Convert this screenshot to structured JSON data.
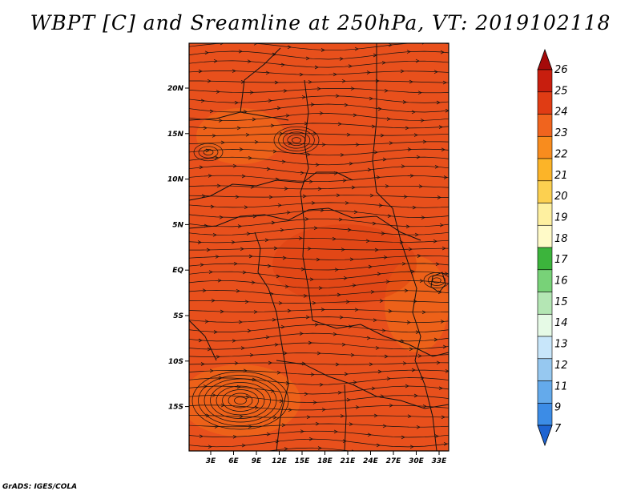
{
  "title": "WBPT [C] and Sreamline at 250hPa, VT: 2019102118",
  "credit": "GrADS: IGES/COLA",
  "map": {
    "lat_labels": [
      "20N",
      "15N",
      "10N",
      "5N",
      "EQ",
      "5S",
      "10S",
      "15S"
    ],
    "lon_labels": [
      "3E",
      "6E",
      "9E",
      "12E",
      "15E",
      "18E",
      "21E",
      "24E",
      "27E",
      "30E",
      "33E"
    ],
    "colors": {
      "field_main": "#e8501c",
      "field_warm": "#f06818",
      "field_hot": "#dc3c10",
      "lines": "#111111"
    }
  },
  "colorbar": {
    "levels": [
      "26",
      "25",
      "24",
      "23",
      "22",
      "21",
      "20",
      "19",
      "18",
      "17",
      "16",
      "15",
      "14",
      "13",
      "12",
      "11",
      "9",
      "7"
    ],
    "colors": [
      "#a50a0a",
      "#c81e0e",
      "#e03c14",
      "#f0641e",
      "#f88c1e",
      "#fcb428",
      "#fcd050",
      "#fef0a0",
      "#fffac8",
      "#3cb43c",
      "#78d278",
      "#b4e6b4",
      "#e6fae6",
      "#c8e6fa",
      "#96c8f0",
      "#64aaeb",
      "#3c8ce6",
      "#1e64d2"
    ]
  }
}
